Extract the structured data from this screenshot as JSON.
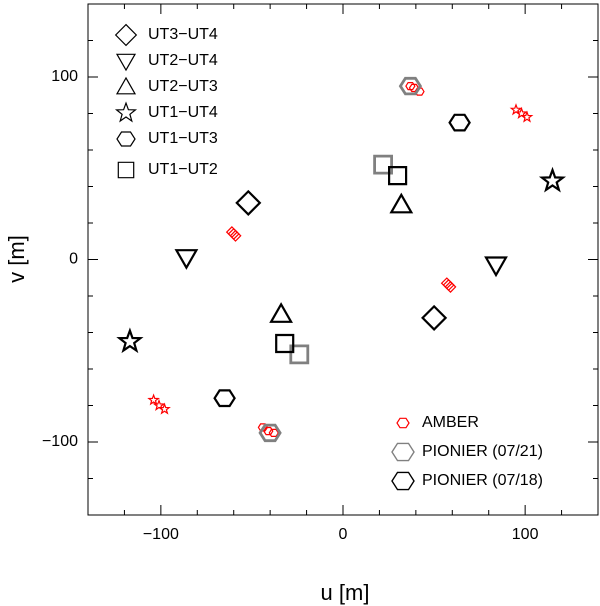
{
  "chart_data": {
    "type": "scatter",
    "xlabel": "u [m]",
    "ylabel": "v [m]",
    "xlim": [
      -140,
      140
    ],
    "ylim": [
      -140,
      140
    ],
    "xticks": [
      {
        "value": -100,
        "label": "−100"
      },
      0,
      100
    ],
    "yticks": [
      {
        "value": -100,
        "label": "−100"
      },
      0,
      100
    ],
    "xminorticks": [
      -120,
      -80,
      -60,
      -40,
      -20,
      20,
      40,
      60,
      80,
      120
    ],
    "yminorticks": [
      -120,
      -80,
      -60,
      -40,
      -20,
      20,
      40,
      60,
      80,
      120
    ],
    "marker_legend": [
      {
        "label": "UT3−UT4",
        "marker": "diamond"
      },
      {
        "label": "UT2−UT4",
        "marker": "triangle-down"
      },
      {
        "label": "UT2−UT3",
        "marker": "triangle-up"
      },
      {
        "label": "UT1−UT4",
        "marker": "star"
      },
      {
        "label": "UT1−UT3",
        "marker": "hexagon"
      },
      {
        "label": "UT1−UT2",
        "marker": "square"
      }
    ],
    "legend": "lower right",
    "series": [
      {
        "name": "AMBER",
        "color": "#ff0000",
        "marker": "hexagon",
        "x": [
          37,
          39,
          42,
          95,
          98,
          101,
          -61,
          -60,
          -59,
          57,
          58,
          59,
          -104,
          -101,
          -98,
          -44,
          -41,
          -38
        ],
        "y": [
          95,
          94,
          92,
          82,
          80,
          78,
          15,
          14,
          13,
          -13,
          -14,
          -15,
          -77,
          -80,
          -82,
          -92,
          -94,
          -95
        ],
        "markers": [
          "hexagon",
          "hexagon",
          "hexagon",
          "star",
          "star",
          "star",
          "diamond",
          "diamond",
          "diamond",
          "diamond",
          "diamond",
          "diamond",
          "star",
          "star",
          "star",
          "hexagon",
          "hexagon",
          "hexagon"
        ]
      },
      {
        "name": "PIONIER (07/21)",
        "color": "#808080",
        "marker": "hexagon",
        "x": [
          37,
          -40,
          22,
          -24
        ],
        "y": [
          95,
          -95,
          52,
          -52
        ],
        "markers": [
          "hexagon",
          "hexagon",
          "square",
          "square"
        ]
      },
      {
        "name": "PIONIER (07/18)",
        "color": "#000000",
        "marker": "hexagon",
        "x": [
          -52,
          50,
          -86,
          84,
          32,
          -34,
          115,
          -117,
          64,
          -65,
          30,
          -32
        ],
        "y": [
          31,
          -32,
          1,
          -3,
          30,
          -30,
          43,
          -45,
          75,
          -76,
          46,
          -46
        ],
        "markers": [
          "diamond",
          "diamond",
          "triangle-down",
          "triangle-down",
          "triangle-up",
          "triangle-up",
          "star",
          "star",
          "hexagon",
          "hexagon",
          "square",
          "square"
        ]
      }
    ]
  }
}
